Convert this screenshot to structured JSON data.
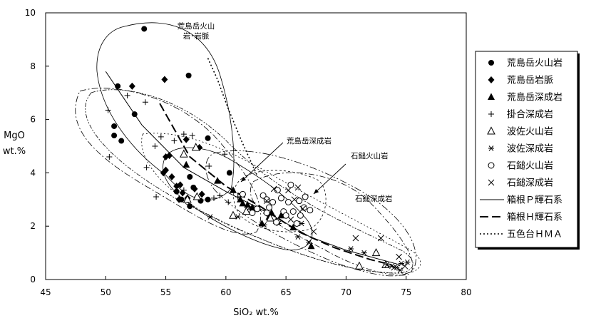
{
  "chart_data": {
    "type": "scatter",
    "title": "",
    "xlabel": "SiO₂ wt.%",
    "ylabel": [
      "MgO",
      "wt.%"
    ],
    "xlim": [
      45,
      80
    ],
    "ylim": [
      0,
      10
    ],
    "xticks": [
      45,
      50,
      55,
      60,
      65,
      70,
      75,
      80
    ],
    "yticks": [
      0,
      2,
      4,
      6,
      8,
      10
    ],
    "grid": false,
    "legend_position": "right",
    "series": [
      {
        "name": "荒島岳火山岩",
        "marker": "filled-circle",
        "points": [
          [
            50.7,
            5.75
          ],
          [
            50.7,
            5.4
          ],
          [
            51.0,
            7.25
          ],
          [
            51.3,
            5.2
          ],
          [
            52.4,
            6.2
          ],
          [
            53.2,
            9.4
          ],
          [
            56.9,
            7.65
          ],
          [
            58.5,
            5.3
          ],
          [
            60.3,
            4.0
          ],
          [
            57.0,
            3.85
          ],
          [
            57.3,
            3.45
          ],
          [
            57.9,
            2.95
          ],
          [
            58.5,
            3.0
          ],
          [
            57.0,
            2.75
          ],
          [
            55.9,
            3.3
          ],
          [
            56.3,
            3.0
          ]
        ]
      },
      {
        "name": "荒島岳岩脈",
        "marker": "filled-diamond",
        "points": [
          [
            52.2,
            7.25
          ],
          [
            54.9,
            7.5
          ],
          [
            56.7,
            5.25
          ],
          [
            57.8,
            4.95
          ],
          [
            55.0,
            4.6
          ],
          [
            55.3,
            4.65
          ],
          [
            55.0,
            4.1
          ],
          [
            55.5,
            3.85
          ],
          [
            55.9,
            3.5
          ],
          [
            56.2,
            3.55
          ],
          [
            56.4,
            3.25
          ],
          [
            56.1,
            3.0
          ],
          [
            56.8,
            3.05
          ],
          [
            57.4,
            3.4
          ],
          [
            54.8,
            4.0
          ],
          [
            58.0,
            3.2
          ]
        ]
      },
      {
        "name": "荒島岳深成岩",
        "marker": "filled-triangle",
        "points": [
          [
            56.7,
            4.3
          ],
          [
            59.3,
            3.7
          ],
          [
            60.6,
            3.35
          ],
          [
            61.2,
            3.0
          ],
          [
            61.4,
            2.85
          ],
          [
            61.8,
            2.8
          ],
          [
            62.2,
            2.7
          ],
          [
            63.0,
            2.1
          ],
          [
            63.6,
            2.35
          ],
          [
            63.8,
            2.5
          ],
          [
            64.2,
            2.2
          ],
          [
            64.6,
            2.4
          ],
          [
            65.6,
            1.95
          ],
          [
            67.1,
            1.25
          ]
        ]
      },
      {
        "name": "掛合深成岩",
        "marker": "plus",
        "points": [
          [
            50.2,
            6.35
          ],
          [
            51.8,
            6.9
          ],
          [
            53.3,
            6.65
          ],
          [
            54.1,
            5.0
          ],
          [
            54.6,
            5.35
          ],
          [
            55.7,
            5.2
          ],
          [
            56.5,
            5.45
          ],
          [
            57.2,
            5.4
          ],
          [
            58.6,
            4.25
          ],
          [
            59.0,
            3.05
          ],
          [
            53.4,
            4.2
          ],
          [
            50.3,
            4.6
          ],
          [
            54.2,
            3.1
          ],
          [
            56.5,
            3.35
          ],
          [
            57.6,
            3.1
          ],
          [
            59.5,
            3.15
          ],
          [
            60.2,
            2.9
          ],
          [
            59.9,
            4.7
          ],
          [
            61.0,
            3.1
          ]
        ]
      },
      {
        "name": "波佐火山岩",
        "marker": "open-triangle",
        "points": [
          [
            56.5,
            4.7
          ],
          [
            57.5,
            4.95
          ],
          [
            56.8,
            3.0
          ],
          [
            57.6,
            3.1
          ],
          [
            60.6,
            2.4
          ],
          [
            61.7,
            2.55
          ],
          [
            63.7,
            2.3
          ],
          [
            72.5,
            1.0
          ],
          [
            71.1,
            0.5
          ],
          [
            73.3,
            0.55
          ]
        ]
      },
      {
        "name": "波佐深成岩",
        "marker": "asterisk",
        "points": [
          [
            58.7,
            2.35
          ],
          [
            61.0,
            2.35
          ],
          [
            63.2,
            2.05
          ],
          [
            64.4,
            2.1
          ],
          [
            66.0,
            1.6
          ],
          [
            66.3,
            2.1
          ],
          [
            66.9,
            1.4
          ],
          [
            70.4,
            1.15
          ],
          [
            71.5,
            1.0
          ],
          [
            73.4,
            0.55
          ],
          [
            73.8,
            0.5
          ],
          [
            74.2,
            0.45
          ],
          [
            74.6,
            0.6
          ],
          [
            75.1,
            0.65
          ],
          [
            74.5,
            0.35
          ]
        ]
      },
      {
        "name": "石鎚火山岩",
        "marker": "open-circle",
        "points": [
          [
            61.4,
            3.2
          ],
          [
            62.2,
            2.5
          ],
          [
            62.6,
            2.65
          ],
          [
            63.1,
            3.15
          ],
          [
            63.4,
            3.0
          ],
          [
            63.6,
            2.7
          ],
          [
            63.9,
            2.9
          ],
          [
            64.3,
            3.35
          ],
          [
            64.6,
            3.05
          ],
          [
            64.8,
            2.55
          ],
          [
            65.0,
            2.4
          ],
          [
            65.2,
            2.9
          ],
          [
            65.4,
            3.55
          ],
          [
            65.6,
            2.55
          ],
          [
            65.9,
            2.1
          ],
          [
            66.1,
            2.95
          ],
          [
            66.5,
            2.7
          ],
          [
            66.6,
            3.1
          ],
          [
            67.0,
            2.6
          ],
          [
            64.2,
            2.15
          ],
          [
            63.4,
            2.5
          ],
          [
            66.2,
            2.4
          ]
        ]
      },
      {
        "name": "石鎚深成岩",
        "marker": "cross",
        "points": [
          [
            62.0,
            2.7
          ],
          [
            63.4,
            2.95
          ],
          [
            64.0,
            3.4
          ],
          [
            65.2,
            3.35
          ],
          [
            65.7,
            3.0
          ],
          [
            65.4,
            2.25
          ],
          [
            66.4,
            2.65
          ],
          [
            66.0,
            3.45
          ],
          [
            67.3,
            1.8
          ],
          [
            70.8,
            1.55
          ],
          [
            72.9,
            1.55
          ],
          [
            74.4,
            0.85
          ],
          [
            74.0,
            0.45
          ],
          [
            74.9,
            0.5
          ]
        ]
      }
    ],
    "trend_lines": [
      {
        "name": "箱根Ｐ輝石系",
        "style": "solid",
        "points": [
          [
            50.0,
            7.8
          ],
          [
            53.0,
            5.8
          ],
          [
            56.5,
            4.2
          ],
          [
            60.0,
            3.3
          ],
          [
            63.5,
            2.5
          ],
          [
            67.0,
            1.6
          ],
          [
            70.0,
            1.1
          ],
          [
            74.5,
            0.55
          ]
        ]
      },
      {
        "name": "箱根Ｈ輝石系",
        "style": "dashed",
        "points": [
          [
            54.5,
            6.6
          ],
          [
            57.0,
            4.6
          ],
          [
            60.0,
            3.5
          ],
          [
            63.0,
            2.7
          ],
          [
            66.0,
            1.8
          ],
          [
            69.0,
            1.2
          ],
          [
            72.0,
            0.75
          ],
          [
            73.8,
            0.55
          ]
        ]
      },
      {
        "name": "五色台ＨＭＡ",
        "style": "dotted",
        "points": [
          [
            58.5,
            8.3
          ],
          [
            59.3,
            7.5
          ],
          [
            60.2,
            6.4
          ],
          [
            61.3,
            5.2
          ],
          [
            62.6,
            3.9
          ]
        ]
      }
    ],
    "annotations": [
      {
        "text": [
          "荒島岳火山",
          "岩･岩脈"
        ]
      },
      {
        "text": [
          "荒島岳深成岩"
        ]
      },
      {
        "text": [
          "石鎚火山岩"
        ]
      },
      {
        "text": [
          "石鎚深成岩"
        ]
      }
    ]
  }
}
